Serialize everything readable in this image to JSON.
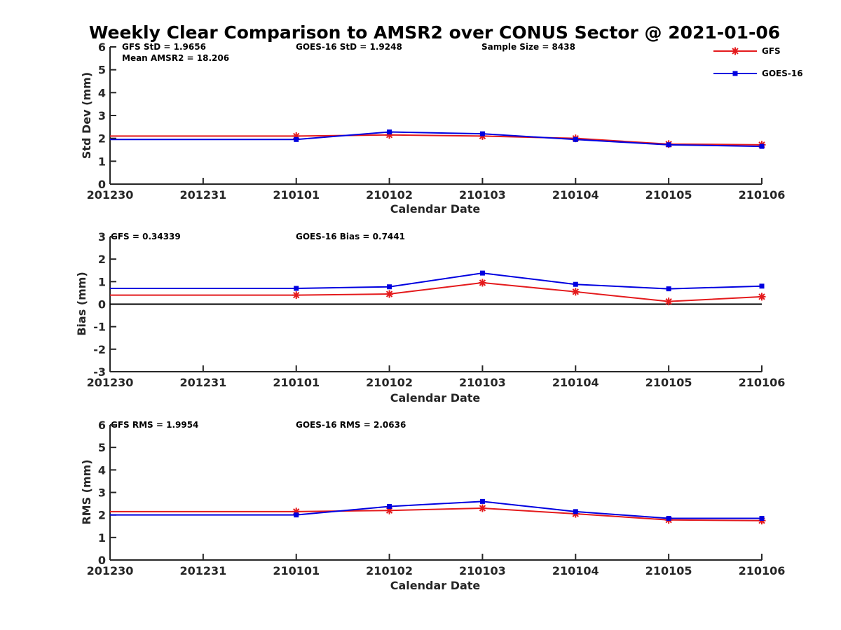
{
  "title": "Weekly Clear Comparison to AMSR2 over CONUS Sector @ 2021-01-06",
  "colors": {
    "GFS": "#e41a1c",
    "GOES-16": "#0000e0",
    "zero_line": "#000000",
    "axis": "#262626"
  },
  "legend": [
    {
      "name": "GFS",
      "marker": "asterisk"
    },
    {
      "name": "GOES-16",
      "marker": "square"
    }
  ],
  "panels": [
    {
      "annotations": {
        "a1": "GFS StD = 1.9656",
        "a2": "GOES-16 StD = 1.9248",
        "a3": "Sample Size = 8438",
        "a4": "Mean AMSR2 = 18.206"
      },
      "ylabel": "Std Dev (mm)",
      "xlabel": "Calendar Date"
    },
    {
      "annotations": {
        "a1": "GFS = 0.34339",
        "a2": "GOES-16 Bias  = 0.7441"
      },
      "ylabel": "Bias (mm)",
      "xlabel": "Calendar Date"
    },
    {
      "annotations": {
        "a1": "GFS RMS = 1.9954",
        "a2": "GOES-16 RMS = 2.0636"
      },
      "ylabel": "RMS (mm)",
      "xlabel": "Calendar Date"
    }
  ],
  "chart_data": [
    {
      "type": "line",
      "title": "Weekly Clear Comparison to AMSR2 over CONUS Sector @ 2021-01-06",
      "xlabel": "Calendar Date",
      "ylabel": "Std Dev (mm)",
      "x_ticks": [
        "201230",
        "201231",
        "210101",
        "210102",
        "210103",
        "210104",
        "210105",
        "210106"
      ],
      "ylim": [
        0,
        6
      ],
      "y_ticks": [
        0,
        1,
        2,
        3,
        4,
        5,
        6
      ],
      "zero_line": false,
      "legend_position": "top-right",
      "series": [
        {
          "name": "GFS",
          "x": [
            "201230",
            "210101",
            "210102",
            "210103",
            "210104",
            "210105",
            "210106"
          ],
          "values": [
            2.1,
            2.1,
            2.15,
            2.1,
            2.0,
            1.75,
            1.72
          ]
        },
        {
          "name": "GOES-16",
          "x": [
            "201230",
            "210101",
            "210102",
            "210103",
            "210104",
            "210105",
            "210106"
          ],
          "values": [
            1.95,
            1.95,
            2.28,
            2.2,
            1.95,
            1.72,
            1.65
          ]
        }
      ]
    },
    {
      "type": "line",
      "xlabel": "Calendar Date",
      "ylabel": "Bias (mm)",
      "x_ticks": [
        "201230",
        "201231",
        "210101",
        "210102",
        "210103",
        "210104",
        "210105",
        "210106"
      ],
      "ylim": [
        -3,
        3
      ],
      "y_ticks": [
        -3,
        -2,
        -1,
        0,
        1,
        2,
        3
      ],
      "zero_line": true,
      "series": [
        {
          "name": "GFS",
          "x": [
            "201230",
            "210101",
            "210102",
            "210103",
            "210104",
            "210105",
            "210106"
          ],
          "values": [
            0.4,
            0.4,
            0.45,
            0.95,
            0.55,
            0.12,
            0.33
          ]
        },
        {
          "name": "GOES-16",
          "x": [
            "201230",
            "210101",
            "210102",
            "210103",
            "210104",
            "210105",
            "210106"
          ],
          "values": [
            0.7,
            0.7,
            0.77,
            1.38,
            0.88,
            0.68,
            0.8
          ]
        }
      ]
    },
    {
      "type": "line",
      "xlabel": "Calendar Date",
      "ylabel": "RMS (mm)",
      "x_ticks": [
        "201230",
        "201231",
        "210101",
        "210102",
        "210103",
        "210104",
        "210105",
        "210106"
      ],
      "ylim": [
        0,
        6
      ],
      "y_ticks": [
        0,
        1,
        2,
        3,
        4,
        5,
        6
      ],
      "zero_line": false,
      "series": [
        {
          "name": "GFS",
          "x": [
            "201230",
            "210101",
            "210102",
            "210103",
            "210104",
            "210105",
            "210106"
          ],
          "values": [
            2.15,
            2.15,
            2.2,
            2.3,
            2.05,
            1.78,
            1.75
          ]
        },
        {
          "name": "GOES-16",
          "x": [
            "201230",
            "210101",
            "210102",
            "210103",
            "210104",
            "210105",
            "210106"
          ],
          "values": [
            2.0,
            2.0,
            2.38,
            2.6,
            2.15,
            1.85,
            1.85
          ]
        }
      ]
    }
  ]
}
